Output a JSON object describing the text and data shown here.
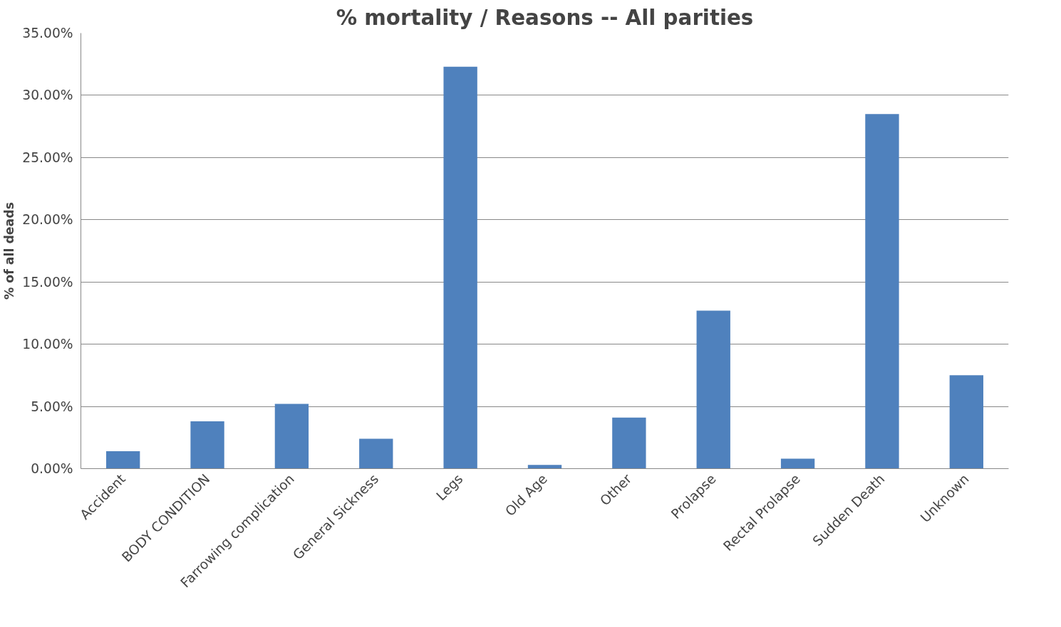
{
  "chart_data": {
    "type": "bar",
    "title": "% mortality / Reasons -- All parities",
    "ylabel": "% of all deads",
    "categories": [
      "Accident",
      "BODY CONDITION",
      "Farrowing complication",
      "General Sickness",
      "Legs",
      "Old Age",
      "Other",
      "Prolapse",
      "Rectal Prolapse",
      "Sudden Death",
      "Unknown"
    ],
    "values": [
      1.4,
      3.8,
      5.2,
      2.4,
      32.3,
      0.3,
      4.1,
      12.7,
      0.8,
      28.5,
      7.5
    ],
    "color": "#4f81bd",
    "ylim": [
      0,
      35
    ],
    "yticks": [
      {
        "value": 0,
        "label": "0.00%"
      },
      {
        "value": 5,
        "label": "5.00%"
      },
      {
        "value": 10,
        "label": "10.00%"
      },
      {
        "value": 15,
        "label": "15.00%"
      },
      {
        "value": 20,
        "label": "20.00%"
      },
      {
        "value": 25,
        "label": "25.00%"
      },
      {
        "value": 30,
        "label": "30.00%"
      },
      {
        "value": 35,
        "label": "35.00%"
      }
    ],
    "grid": "y"
  }
}
